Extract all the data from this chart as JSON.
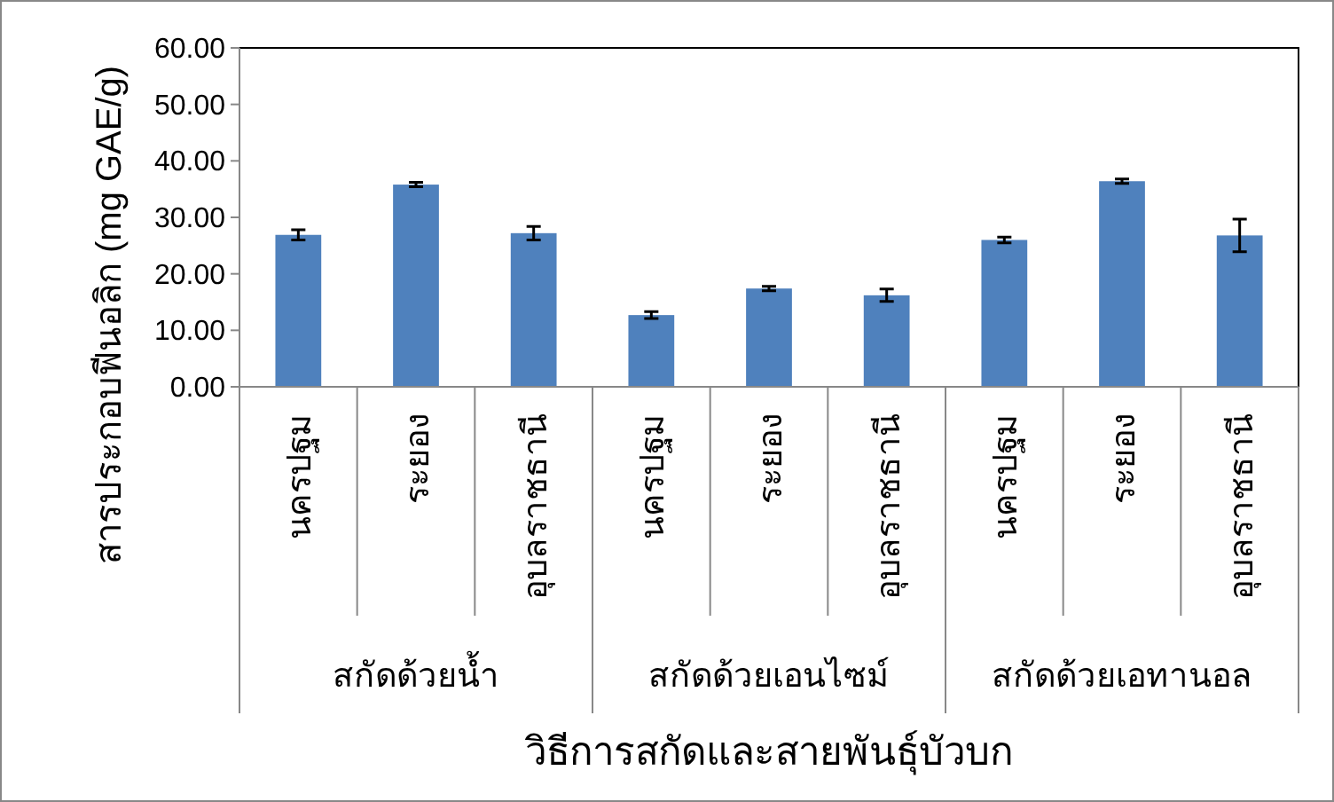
{
  "chart_data": {
    "type": "bar",
    "xlabel": "วิธีการสกัดและสายพันธุ์บัวบก",
    "ylabel": "สารประกอบฟีนอลิก (mg GAE/g)",
    "categories": [
      "นครปฐม",
      "ระยอง",
      "อุบลราชธานี",
      "นครปฐม",
      "ระยอง",
      "อุบลราชธานี",
      "นครปฐม",
      "ระยอง",
      "อุบลราชธานี"
    ],
    "values": [
      26.9,
      35.8,
      27.2,
      12.7,
      17.4,
      16.2,
      26.0,
      36.4,
      26.8
    ],
    "errors": [
      0.9,
      0.4,
      1.2,
      0.6,
      0.4,
      1.1,
      0.5,
      0.4,
      2.9
    ],
    "color": "#4f81bd",
    "ylim": [
      0,
      60
    ],
    "yticks": [
      {
        "value": 0,
        "label": "0.00"
      },
      {
        "value": 10,
        "label": "10.00"
      },
      {
        "value": 20,
        "label": "20.00"
      },
      {
        "value": 30,
        "label": "30.00"
      },
      {
        "value": 40,
        "label": "40.00"
      },
      {
        "value": 50,
        "label": "50.00"
      },
      {
        "value": 60,
        "label": "60.00"
      }
    ],
    "annotations": [
      "สกัดด้วยน้ำ",
      "สกัดด้วยเอนไซม์",
      "สกัดด้วยเอทานอล"
    ],
    "grid": false
  }
}
